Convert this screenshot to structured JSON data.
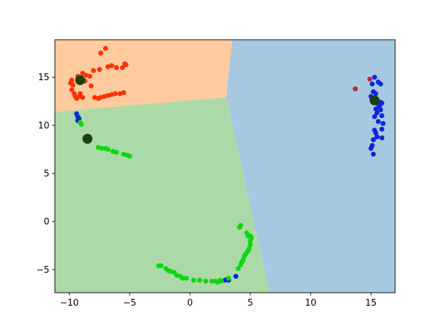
{
  "chart_data": {
    "type": "scatter",
    "title": "",
    "xlabel": "",
    "ylabel": "",
    "xlim": [
      -11.2,
      17.0
    ],
    "ylim": [
      -7.4,
      18.9
    ],
    "grid": false,
    "legend": "none",
    "xticks": [
      {
        "value": -10,
        "label": "−10"
      },
      {
        "value": -5,
        "label": "−5"
      },
      {
        "value": 0,
        "label": "0"
      },
      {
        "value": 5,
        "label": "5"
      },
      {
        "value": 10,
        "label": "10"
      },
      {
        "value": 15,
        "label": "15"
      }
    ],
    "yticks": [
      {
        "value": -5,
        "label": "−5"
      },
      {
        "value": 0,
        "label": "0"
      },
      {
        "value": 5,
        "label": "5"
      },
      {
        "value": 10,
        "label": "10"
      },
      {
        "value": 15,
        "label": "15"
      }
    ],
    "regions": [
      {
        "color": "#ffcb9f",
        "polygon": [
          [
            -11.2,
            18.9
          ],
          [
            3.5,
            18.9
          ],
          [
            3.0,
            12.9
          ],
          [
            -11.2,
            11.4
          ]
        ]
      },
      {
        "color": "#abdaa8",
        "polygon": [
          [
            -11.2,
            11.4
          ],
          [
            3.0,
            12.9
          ],
          [
            6.6,
            -7.4
          ],
          [
            -11.2,
            -7.4
          ]
        ]
      },
      {
        "color": "#a6c8e0",
        "polygon": [
          [
            3.5,
            18.9
          ],
          [
            17.0,
            18.9
          ],
          [
            17.0,
            -7.4
          ],
          [
            6.6,
            -7.4
          ],
          [
            3.0,
            12.9
          ]
        ]
      }
    ],
    "series": [
      {
        "color": "#ff3300",
        "points": [
          [
            -7.4,
            17.5
          ],
          [
            -7.0,
            18.0
          ],
          [
            -6.8,
            16.1
          ],
          [
            -6.5,
            16.2
          ],
          [
            -6.1,
            16.0
          ],
          [
            -5.6,
            16.0
          ],
          [
            -5.4,
            16.4
          ],
          [
            -5.3,
            16.3
          ],
          [
            -9.8,
            14.7
          ],
          [
            -9.9,
            14.4
          ],
          [
            -9.7,
            14.2
          ],
          [
            -9.8,
            13.7
          ],
          [
            -9.6,
            13.3
          ],
          [
            -9.5,
            13.0
          ],
          [
            -9.4,
            12.8
          ],
          [
            -9.2,
            13.0
          ],
          [
            -9.1,
            13.3
          ],
          [
            -8.9,
            15.4
          ],
          [
            -8.6,
            15.2
          ],
          [
            -8.3,
            15.1
          ],
          [
            -8.7,
            14.6
          ],
          [
            -8.9,
            12.9
          ],
          [
            -8.0,
            15.7
          ],
          [
            -7.5,
            15.8
          ],
          [
            -7.9,
            12.9
          ],
          [
            -7.6,
            12.8
          ],
          [
            -7.4,
            12.9
          ],
          [
            -7.1,
            13.0
          ],
          [
            -6.8,
            13.1
          ],
          [
            -6.5,
            13.2
          ],
          [
            -6.2,
            13.3
          ],
          [
            -5.8,
            13.3
          ],
          [
            -5.5,
            13.4
          ],
          [
            -9.3,
            15.1
          ],
          [
            -8.2,
            14.1
          ]
        ]
      },
      {
        "color": "#0d26d9",
        "points": [
          [
            -9.4,
            11.2
          ],
          [
            -9.3,
            10.9
          ],
          [
            -9.2,
            10.7
          ],
          [
            -9.3,
            10.5
          ],
          [
            2.9,
            -6.1
          ],
          [
            3.1,
            -6.0
          ],
          [
            3.2,
            -6.1
          ],
          [
            3.8,
            -5.7
          ],
          [
            15.3,
            15.0
          ],
          [
            15.6,
            14.5
          ],
          [
            15.8,
            14.3
          ],
          [
            15.1,
            14.3
          ],
          [
            15.2,
            13.5
          ],
          [
            15.4,
            13.3
          ],
          [
            15.0,
            13.0
          ],
          [
            15.3,
            12.6
          ],
          [
            15.6,
            12.2
          ],
          [
            15.9,
            12.3
          ],
          [
            15.7,
            11.9
          ],
          [
            15.4,
            11.7
          ],
          [
            15.8,
            11.6
          ],
          [
            15.5,
            11.3
          ],
          [
            15.9,
            11.0
          ],
          [
            15.3,
            10.9
          ],
          [
            16.0,
            10.2
          ],
          [
            15.6,
            10.4
          ],
          [
            15.9,
            9.6
          ],
          [
            15.4,
            9.2
          ],
          [
            15.3,
            9.5
          ],
          [
            15.5,
            8.8
          ],
          [
            15.2,
            8.5
          ],
          [
            15.9,
            8.7
          ],
          [
            15.1,
            7.9
          ],
          [
            15.0,
            7.6
          ],
          [
            15.2,
            7.0
          ],
          [
            15.8,
            12.4
          ]
        ]
      },
      {
        "color": "#0ed614",
        "points": [
          [
            -9.0,
            10.1
          ],
          [
            -9.1,
            10.3
          ],
          [
            -7.6,
            7.7
          ],
          [
            -7.3,
            7.6
          ],
          [
            -7.0,
            7.6
          ],
          [
            -6.8,
            7.5
          ],
          [
            -6.4,
            7.3
          ],
          [
            -6.1,
            7.2
          ],
          [
            -5.5,
            7.0
          ],
          [
            -5.2,
            6.9
          ],
          [
            -5.0,
            6.8
          ],
          [
            -2.6,
            -4.6
          ],
          [
            -2.4,
            -4.6
          ],
          [
            -2.0,
            -4.9
          ],
          [
            -1.8,
            -5.1
          ],
          [
            -1.6,
            -5.2
          ],
          [
            -1.3,
            -5.3
          ],
          [
            -1.1,
            -5.6
          ],
          [
            -0.8,
            -5.7
          ],
          [
            -0.6,
            -5.9
          ],
          [
            -0.3,
            -5.9
          ],
          [
            0.3,
            -6.1
          ],
          [
            0.8,
            -6.1
          ],
          [
            1.3,
            -6.2
          ],
          [
            1.8,
            -6.2
          ],
          [
            2.1,
            -6.2
          ],
          [
            2.5,
            -6.1
          ],
          [
            4.1,
            -0.6
          ],
          [
            4.2,
            -0.4
          ],
          [
            4.7,
            -1.2
          ],
          [
            4.8,
            -1.5
          ],
          [
            5.0,
            -1.5
          ],
          [
            5.1,
            -1.7
          ],
          [
            5.0,
            -2.0
          ],
          [
            5.0,
            -2.4
          ],
          [
            4.9,
            -2.8
          ],
          [
            4.8,
            -3.1
          ],
          [
            4.6,
            -3.4
          ],
          [
            4.5,
            -3.6
          ],
          [
            4.4,
            -4.0
          ],
          [
            4.3,
            -4.2
          ],
          [
            4.2,
            -4.5
          ],
          [
            4.0,
            -4.9
          ],
          [
            2.3,
            -6.3
          ],
          [
            2.6,
            -6.2
          ],
          [
            3.2,
            -5.9
          ]
        ]
      },
      {
        "color": "#b22d3c",
        "points": [
          [
            13.7,
            13.8
          ],
          [
            14.9,
            14.8
          ]
        ]
      }
    ],
    "centers": {
      "color": "#17410f",
      "points": [
        [
          -9.1,
          14.7
        ],
        [
          -8.5,
          8.6
        ],
        [
          15.3,
          12.6
        ]
      ]
    }
  }
}
